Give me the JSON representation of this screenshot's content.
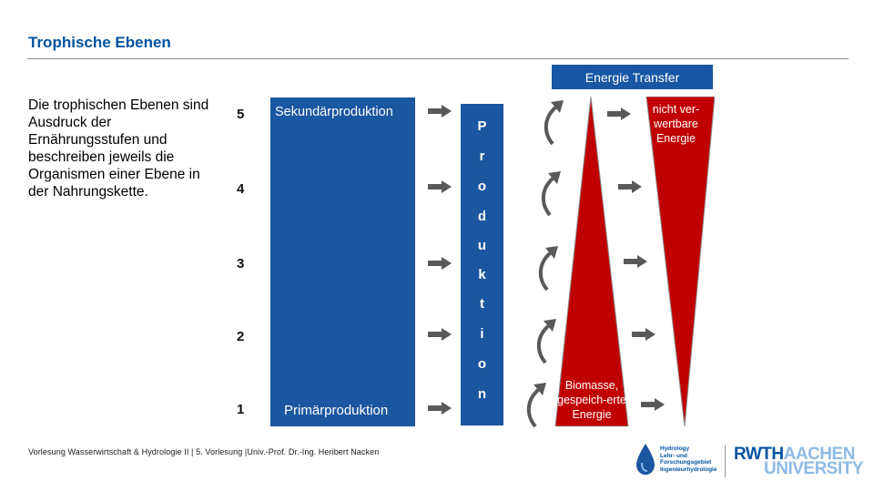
{
  "title": "Trophische Ebenen",
  "energy_transfer_label": "Energie Transfer",
  "description": "Die trophischen Ebenen sind Ausdruck der Ernährungsstufen und beschreiben jeweils die Organismen einer Ebene in der Nahrungskette.",
  "levels": [
    "5",
    "4",
    "3",
    "2",
    "1"
  ],
  "blue_panel": {
    "top_label": "Sekundärproduktion",
    "bottom_label": "Primärproduktion"
  },
  "production_letters": [
    "P",
    "r",
    "o",
    "d",
    "u",
    "k",
    "t",
    "i",
    "o",
    "n"
  ],
  "red_triangle": {
    "top_right_text": "nicht ver-wertbare Energie",
    "bottom_text": "Biomasse, gespeich-erte Energie"
  },
  "footer": "Vorlesung Wasserwirtschaft & Hydrologie II | 5. Vorlesung |Univ.-Prof. Dr.-Ing. Heribert Nacken",
  "logos": {
    "hydro_lines": [
      "Hydrology",
      "Lehr- und",
      "Forschungsgebiet",
      "Ingenieurhydrologie"
    ],
    "rwth_bold": "RWTH",
    "rwth_light": "AACHEN",
    "university": "UNIVERSITY"
  },
  "colors": {
    "accent_blue": "#1b56a0",
    "red": "#c00000",
    "arrow_gray": "#595959"
  },
  "icons": [
    "right-arrow-icon",
    "curved-up-arrow-icon",
    "water-drop-icon"
  ]
}
